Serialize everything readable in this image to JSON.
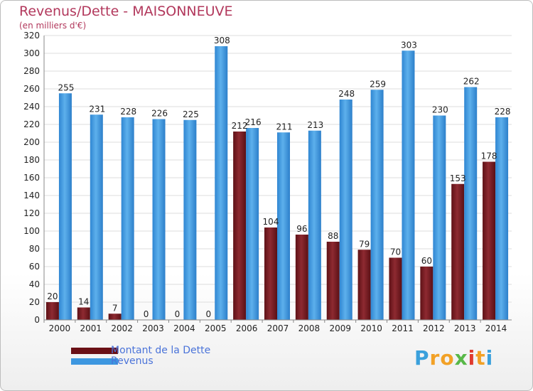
{
  "title": "Revenus/Dette - MAISONNEUVE",
  "subtitle": "(en milliers d'€)",
  "logo_letters": [
    "P",
    "r",
    "o",
    "x",
    "i",
    "t",
    "i"
  ],
  "logo_colors": [
    "#3aa0dc",
    "#f2a126",
    "#f2a126",
    "#58b848",
    "#e03a2e",
    "#f2a126",
    "#3aa0dc"
  ],
  "colors": {
    "dette": "#7b1b22",
    "revenus": "#3d97e0",
    "grid": "#dddddd",
    "axis_text": "#222222"
  },
  "legend": [
    {
      "label": "Montant de la Dette",
      "color": "#6a0f15"
    },
    {
      "label": "Revenus",
      "color": "#3d97e0"
    }
  ],
  "chart_data": {
    "type": "bar",
    "categories": [
      "2000",
      "2001",
      "2002",
      "2003",
      "2004",
      "2005",
      "2006",
      "2007",
      "2008",
      "2009",
      "2010",
      "2011",
      "2012",
      "2013",
      "2014"
    ],
    "series": [
      {
        "name": "Montant de la Dette",
        "values": [
          20,
          14,
          7,
          0,
          0,
          0,
          212,
          104,
          96,
          88,
          79,
          70,
          60,
          153,
          178
        ]
      },
      {
        "name": "Revenus",
        "values": [
          255,
          231,
          228,
          226,
          225,
          308,
          216,
          211,
          213,
          248,
          259,
          303,
          230,
          262,
          228
        ]
      }
    ],
    "ylim": [
      0,
      320
    ],
    "yticks": [
      0,
      20,
      40,
      60,
      80,
      100,
      120,
      140,
      160,
      180,
      200,
      220,
      240,
      260,
      280,
      300,
      320
    ],
    "grid": true,
    "legend_position": "bottom-left"
  }
}
